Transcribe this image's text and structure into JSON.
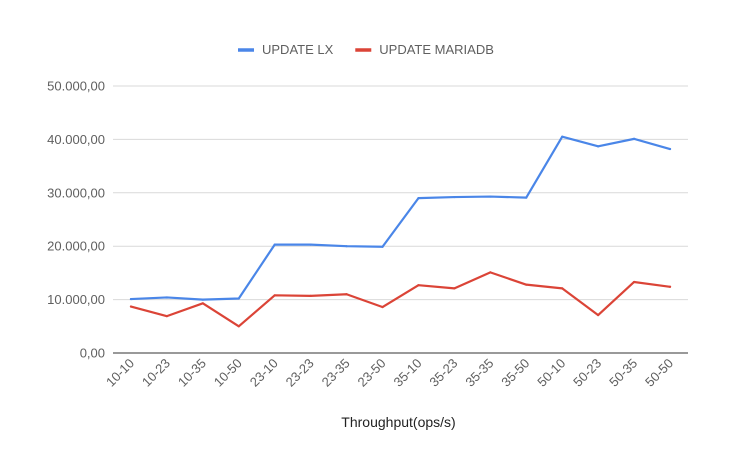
{
  "chart_data": {
    "type": "line",
    "title": "",
    "xlabel": "Throughput(ops/s)",
    "ylabel": "",
    "categories": [
      "10-10",
      "10-23",
      "10-35",
      "10-50",
      "23-10",
      "23-23",
      "23-35",
      "23-50",
      "35-10",
      "35-23",
      "35-35",
      "35-50",
      "50-10",
      "50-23",
      "50-35",
      "50-50"
    ],
    "ylim": [
      0,
      50000
    ],
    "yticks": [
      {
        "value": 0,
        "label": "0,00"
      },
      {
        "value": 10000,
        "label": "10.000,00"
      },
      {
        "value": 20000,
        "label": "20.000,00"
      },
      {
        "value": 30000,
        "label": "30.000,00"
      },
      {
        "value": 40000,
        "label": "40.000,00"
      },
      {
        "value": 50000,
        "label": "50.000,00"
      }
    ],
    "grid": true,
    "legend_position": "top",
    "series": [
      {
        "name": "UPDATE LX",
        "color": "#4a86e8",
        "values": [
          10100,
          10400,
          10000,
          10200,
          20300,
          20300,
          20000,
          19900,
          29000,
          29200,
          29300,
          29100,
          40500,
          38700,
          40100,
          38200
        ]
      },
      {
        "name": "UPDATE MARIADB",
        "color": "#db4437",
        "values": [
          8700,
          6900,
          9300,
          5000,
          10800,
          10700,
          11000,
          8600,
          12700,
          12100,
          15100,
          12800,
          12100,
          7100,
          13300,
          12400
        ]
      }
    ]
  }
}
